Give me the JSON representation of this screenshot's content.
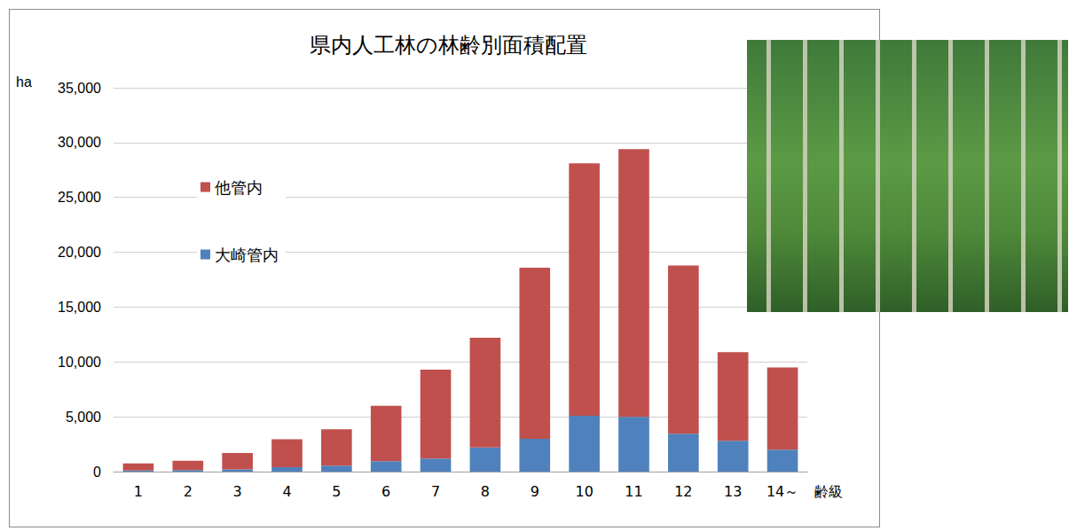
{
  "chart_data": {
    "type": "bar",
    "title": "県内人工林の林齢別面積配置",
    "y_label": "ha",
    "x_label": "齢級",
    "categories": [
      "1",
      "2",
      "3",
      "4",
      "5",
      "6",
      "7",
      "8",
      "9",
      "10",
      "11",
      "12",
      "13",
      "14～"
    ],
    "series": [
      {
        "name": "大崎管内",
        "color": "#4f81bd",
        "values": [
          100,
          150,
          200,
          400,
          550,
          950,
          1200,
          2200,
          3000,
          5100,
          5000,
          3450,
          2800,
          2000
        ]
      },
      {
        "name": "他管内",
        "color": "#c0504d",
        "values": [
          650,
          850,
          1500,
          2550,
          3300,
          5050,
          8100,
          10000,
          15600,
          23000,
          24400,
          15350,
          8100,
          7500
        ]
      }
    ],
    "stacked": true,
    "ylim": [
      0,
      35000
    ],
    "yticks": [
      0,
      {
        "value": 5000,
        "label": "5,000"
      },
      {
        "value": 10000,
        "label": "10,000"
      },
      {
        "value": 15000,
        "label": "15,000"
      },
      {
        "value": 20000,
        "label": "20,000"
      },
      {
        "value": 25000,
        "label": "25,000"
      },
      {
        "value": 30000,
        "label": "30,000"
      },
      {
        "value": 35000,
        "label": "35,000"
      }
    ],
    "grid": true,
    "legend": "upper left"
  }
}
